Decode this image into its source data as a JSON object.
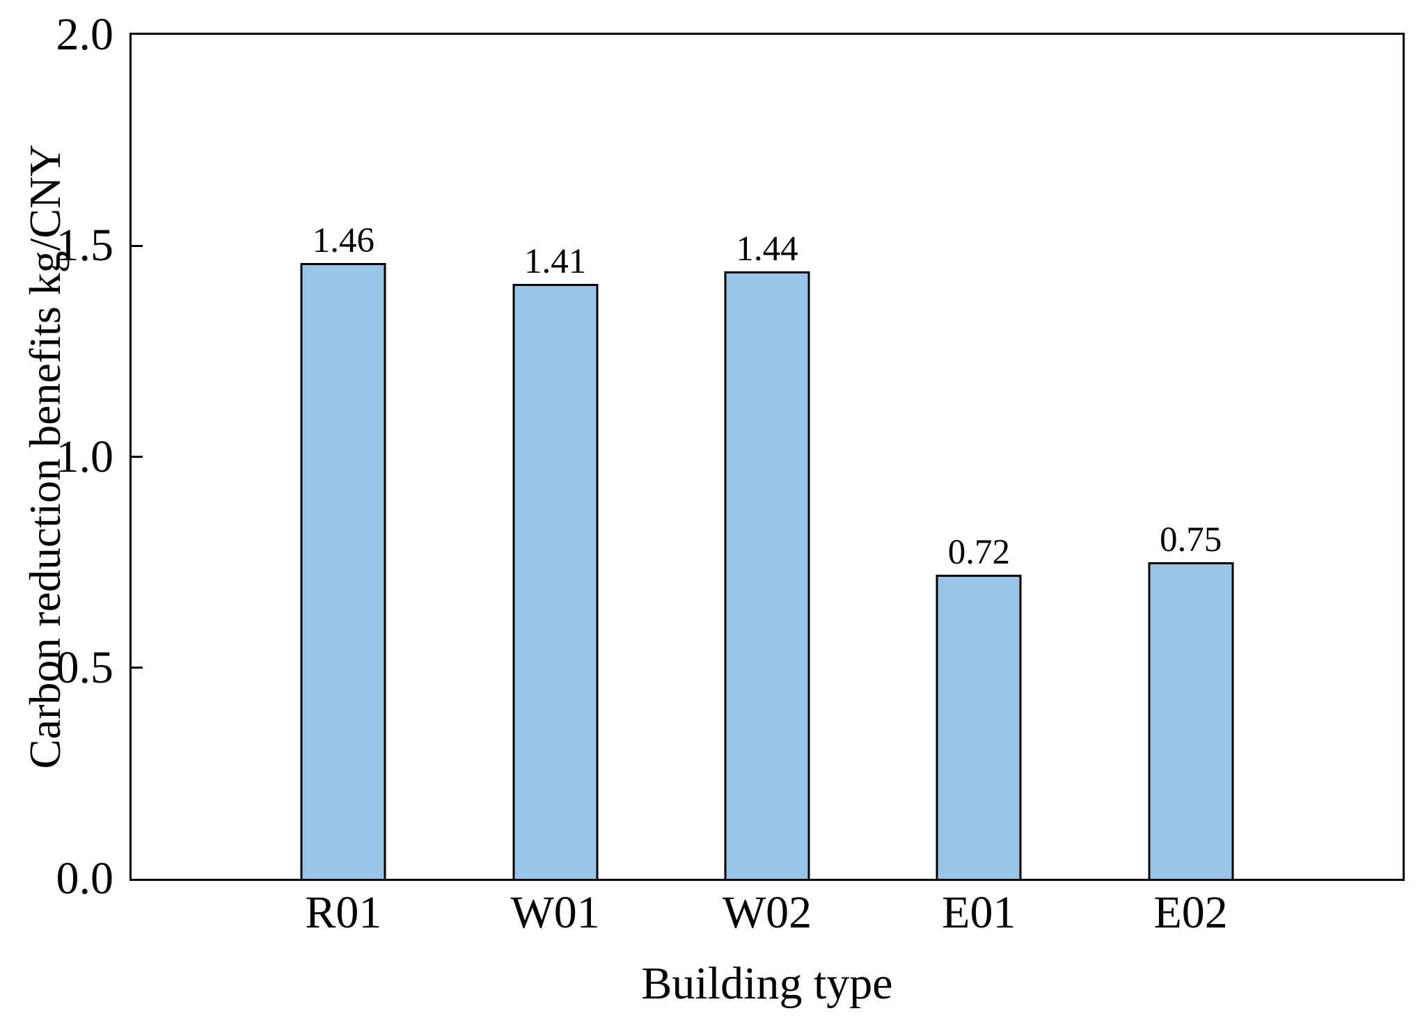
{
  "chart_data": {
    "type": "bar",
    "categories": [
      "R01",
      "W01",
      "W02",
      "E01",
      "E02"
    ],
    "values": [
      1.46,
      1.41,
      1.44,
      0.72,
      0.75
    ],
    "value_labels": [
      "1.46",
      "1.41",
      "1.44",
      "0.72",
      "0.75"
    ],
    "xlabel": "Building type",
    "ylabel": "Carbon reduction benefits kg/CNY",
    "ylim": [
      0.0,
      2.0
    ],
    "yticks": [
      {
        "value": 0.0,
        "label": "0.0"
      },
      {
        "value": 0.5,
        "label": "0.5"
      },
      {
        "value": 1.0,
        "label": "1.0"
      },
      {
        "value": 1.5,
        "label": "1.5"
      },
      {
        "value": 2.0,
        "label": "2.0"
      }
    ],
    "grid": false,
    "legend_position": "none",
    "colors": {
      "bar_fill": "#97C4E7",
      "bar_edge": "#000000",
      "axis": "#000000",
      "text": "#000000",
      "background": "#FFFFFF"
    }
  }
}
